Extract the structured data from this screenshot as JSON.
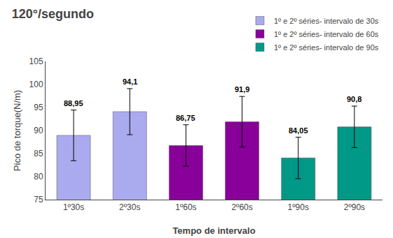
{
  "chart_data": {
    "type": "bar",
    "title": "120°/segundo",
    "xlabel": "Tempo de intervalo",
    "ylabel": "Pico de torque(N/m)",
    "categories": [
      "1º30s",
      "2º30s",
      "1º60s",
      "2º60s",
      "1º90s",
      "2º90s"
    ],
    "series": [
      {
        "name": "1º e 2º séries- intervalo de 30s",
        "color": "#aaaaee",
        "values": [
          88.95,
          94.1,
          null,
          null,
          null,
          null
        ],
        "errors": [
          5.5,
          5.0,
          null,
          null,
          null,
          null
        ],
        "value_labels": [
          "88,95",
          "94,1",
          null,
          null,
          null,
          null
        ]
      },
      {
        "name": "1º e 2º séries- intervalo de 60s",
        "color": "#880099",
        "values": [
          null,
          null,
          86.75,
          91.9,
          null,
          null
        ],
        "errors": [
          null,
          null,
          4.5,
          5.5,
          null,
          null
        ],
        "value_labels": [
          null,
          null,
          "86,75",
          "91,9",
          null,
          null
        ]
      },
      {
        "name": "1º e 2º séries- intervalo de 90s",
        "color": "#009988",
        "values": [
          null,
          null,
          null,
          null,
          84.05,
          90.8
        ],
        "errors": [
          null,
          null,
          null,
          null,
          4.5,
          4.5
        ],
        "value_labels": [
          null,
          null,
          null,
          null,
          "84,05",
          "90,8"
        ]
      }
    ],
    "ylim": [
      75,
      105
    ],
    "yticks": [
      75,
      80,
      85,
      90,
      95,
      100,
      105
    ],
    "grid": false,
    "legend": "top right",
    "data_labels": true
  }
}
